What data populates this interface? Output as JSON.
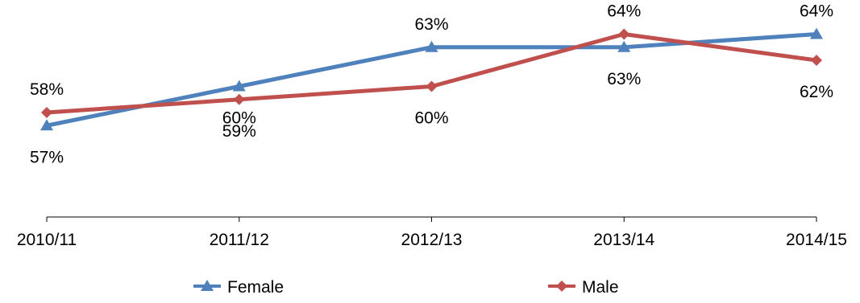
{
  "chart_data": {
    "type": "line",
    "categories": [
      "2010/11",
      "2011/12",
      "2012/13",
      "2013/14",
      "2014/15"
    ],
    "series": [
      {
        "name": "Female",
        "values": [
          57,
          60,
          63,
          63,
          64
        ],
        "labels": [
          "57%",
          "60%",
          "63%",
          "63%",
          "64%"
        ],
        "color": "#4F81BD",
        "marker": "triangle"
      },
      {
        "name": "Male",
        "values": [
          58,
          59,
          60,
          64,
          62
        ],
        "labels": [
          "58%",
          "59%",
          "60%",
          "64%",
          "62%"
        ],
        "color": "#C0504D",
        "marker": "diamond"
      }
    ],
    "title": "",
    "xlabel": "",
    "ylabel": "",
    "ylim": [
      50,
      66
    ],
    "grid": false,
    "legend": "bottom"
  }
}
